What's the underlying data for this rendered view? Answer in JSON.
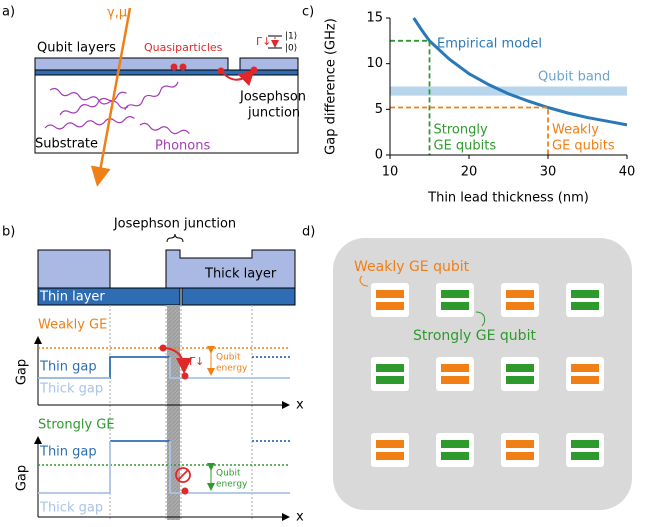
{
  "chart_data": {
    "type": "line",
    "panel_label": "c)",
    "x_label": "Thin lead thickness (nm)",
    "y_label": "Gap difference (GHz)",
    "x": [
      13,
      14,
      15,
      17.5,
      20,
      22.5,
      25,
      27.5,
      30,
      32.5,
      35,
      37.5,
      40
    ],
    "series": [
      {
        "name": "Empirical model",
        "color": "#2a78b8",
        "values": [
          15,
          13.7,
          12.5,
          10.5,
          8.9,
          7.7,
          6.7,
          5.9,
          5.2,
          4.6,
          4.1,
          3.7,
          3.3
        ]
      }
    ],
    "band": {
      "name": "Qubit band",
      "range": [
        6.5,
        7.5
      ],
      "color": "#b7d6ec"
    },
    "markers": [
      {
        "lines": [
          "Strongly",
          "GE qubits"
        ],
        "x": 15,
        "y": 12.5,
        "color": "#2e9a2e"
      },
      {
        "lines": [
          "Weakly",
          "GE qubits"
        ],
        "x": 30,
        "y": 5.2,
        "color": "#f07f16"
      }
    ],
    "xlim": [
      10,
      40
    ],
    "xticks": [
      10,
      20,
      30,
      40
    ],
    "ylim": [
      0,
      15
    ],
    "yticks": [
      0,
      5,
      10,
      15
    ]
  },
  "panel_a": {
    "label": "a)",
    "qubit_layers": "Qubit layers",
    "quasiparticles": "Quasiparticles",
    "decay": "Γ↓",
    "state_1": "|1⟩",
    "state_0": "|0⟩",
    "junction": [
      "Josephson",
      "junction"
    ],
    "substrate": "Substrate",
    "phonons": "Phonons",
    "radiation": "γ,μ"
  },
  "panel_b": {
    "label": "b)",
    "junction": "Josephson junction",
    "thick_layer": "Thick layer",
    "thin_layer": "Thin layer",
    "weak": {
      "title": "Weakly GE",
      "axis": "Gap",
      "thin_gap": "Thin gap",
      "thick_gap": "Thick gap",
      "decay": "Γ↓",
      "energy": [
        "Qubit",
        "energy"
      ],
      "x_axis": "x"
    },
    "strong": {
      "title": "Strongly GE",
      "axis": "Gap",
      "thin_gap": "Thin gap",
      "thick_gap": "Thick gap",
      "energy": [
        "Qubit",
        "energy"
      ],
      "x_axis": "x"
    }
  },
  "panel_d": {
    "label": "d)",
    "weak": "Weakly GE qubit",
    "strong": "Strongly GE qubit"
  }
}
